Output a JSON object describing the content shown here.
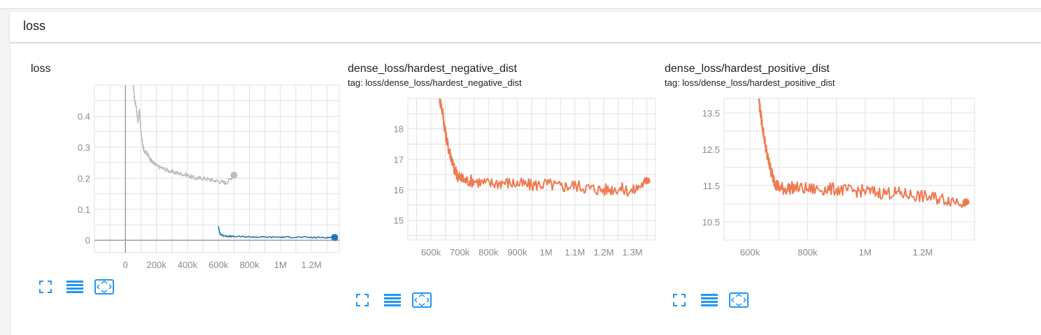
{
  "section": {
    "title": "loss"
  },
  "cards": [
    {
      "title": "loss",
      "tag": ""
    },
    {
      "title": "dense_loss/hardest_negative_dist",
      "tag": "tag: loss/dense_loss/hardest_negative_dist"
    },
    {
      "title": "dense_loss/hardest_positive_dist",
      "tag": "tag: loss/dense_loss/hardest_positive_dist"
    }
  ],
  "chart_data": [
    {
      "type": "line",
      "title": "loss",
      "xlabel": "",
      "ylabel": "",
      "xlim": [
        -200000,
        1380000
      ],
      "ylim": [
        -0.04,
        0.5
      ],
      "x_ticks": [
        0,
        200000,
        400000,
        600000,
        800000,
        1000000,
        1200000
      ],
      "x_tick_labels": [
        "0",
        "200k",
        "400k",
        "600k",
        "800k",
        "1M",
        "1.2M"
      ],
      "y_ticks": [
        0,
        0.1,
        0.2,
        0.3,
        0.4
      ],
      "y_tick_labels": [
        "0",
        "0.1",
        "0.2",
        "0.3",
        "0.4"
      ],
      "grid": true,
      "series": [
        {
          "color": "#bdbdbd",
          "x": [
            50000,
            60000,
            70000,
            80000,
            90000,
            100000,
            110000,
            120000,
            140000,
            160000,
            180000,
            200000,
            250000,
            300000,
            350000,
            400000,
            450000,
            500000,
            550000,
            600000,
            650000,
            700000
          ],
          "y": [
            0.5,
            0.45,
            0.43,
            0.38,
            0.42,
            0.35,
            0.31,
            0.29,
            0.28,
            0.26,
            0.25,
            0.24,
            0.23,
            0.22,
            0.215,
            0.21,
            0.2,
            0.2,
            0.195,
            0.19,
            0.185,
            0.21
          ]
        },
        {
          "color": "#1f77b4",
          "x": [
            600000,
            610000,
            630000,
            660000,
            700000,
            800000,
            900000,
            1000000,
            1100000,
            1200000,
            1300000,
            1350000
          ],
          "y": [
            0.045,
            0.02,
            0.015,
            0.013,
            0.012,
            0.011,
            0.01,
            0.01,
            0.01,
            0.009,
            0.009,
            0.009
          ]
        }
      ]
    },
    {
      "type": "line",
      "title": "dense_loss/hardest_negative_dist",
      "xlabel": "",
      "ylabel": "",
      "xlim": [
        520000,
        1380000
      ],
      "ylim": [
        14.35,
        19.0
      ],
      "x_ticks": [
        600000,
        700000,
        800000,
        900000,
        1000000,
        1100000,
        1200000,
        1300000
      ],
      "x_tick_labels": [
        "600k",
        "700k",
        "800k",
        "900k",
        "1M",
        "1.1M",
        "1.2M",
        "1.3M"
      ],
      "y_ticks": [
        15,
        16,
        17,
        18
      ],
      "y_tick_labels": [
        "15",
        "16",
        "17",
        "18"
      ],
      "grid": true,
      "series": [
        {
          "color": "#ef7a52",
          "x": [
            630000,
            640000,
            650000,
            660000,
            670000,
            680000,
            690000,
            700000,
            720000,
            750000,
            800000,
            850000,
            900000,
            950000,
            1000000,
            1050000,
            1100000,
            1150000,
            1200000,
            1250000,
            1300000,
            1350000
          ],
          "y": [
            19.0,
            18.6,
            17.9,
            17.4,
            17.1,
            16.7,
            16.5,
            16.4,
            16.3,
            16.3,
            16.2,
            16.25,
            16.2,
            16.15,
            16.2,
            16.1,
            16.15,
            16.05,
            16.0,
            16.05,
            15.95,
            16.3
          ]
        }
      ]
    },
    {
      "type": "line",
      "title": "dense_loss/hardest_positive_dist",
      "xlabel": "",
      "ylabel": "",
      "xlim": [
        510000,
        1380000
      ],
      "ylim": [
        10.0,
        13.9
      ],
      "x_ticks": [
        600000,
        800000,
        1000000,
        1200000
      ],
      "x_tick_labels": [
        "600k",
        "800k",
        "1M",
        "1.2M"
      ],
      "y_ticks": [
        10.5,
        11.5,
        12.5,
        13.5
      ],
      "y_tick_labels": [
        "10.5",
        "11.5",
        "12.5",
        "13.5"
      ],
      "grid": true,
      "series": [
        {
          "color": "#ef7a52",
          "x": [
            630000,
            640000,
            650000,
            660000,
            670000,
            680000,
            690000,
            700000,
            720000,
            750000,
            800000,
            850000,
            900000,
            950000,
            1000000,
            1050000,
            1100000,
            1150000,
            1200000,
            1250000,
            1300000,
            1350000
          ],
          "y": [
            13.9,
            13.3,
            12.8,
            12.3,
            12.0,
            11.7,
            11.55,
            11.45,
            11.4,
            11.45,
            11.4,
            11.4,
            11.4,
            11.35,
            11.35,
            11.3,
            11.3,
            11.25,
            11.2,
            11.15,
            11.1,
            11.05
          ]
        }
      ]
    }
  ],
  "controls": {
    "icons": [
      "expand-icon",
      "list-icon",
      "fit-domain-icon"
    ],
    "accent": "#2196f3"
  }
}
